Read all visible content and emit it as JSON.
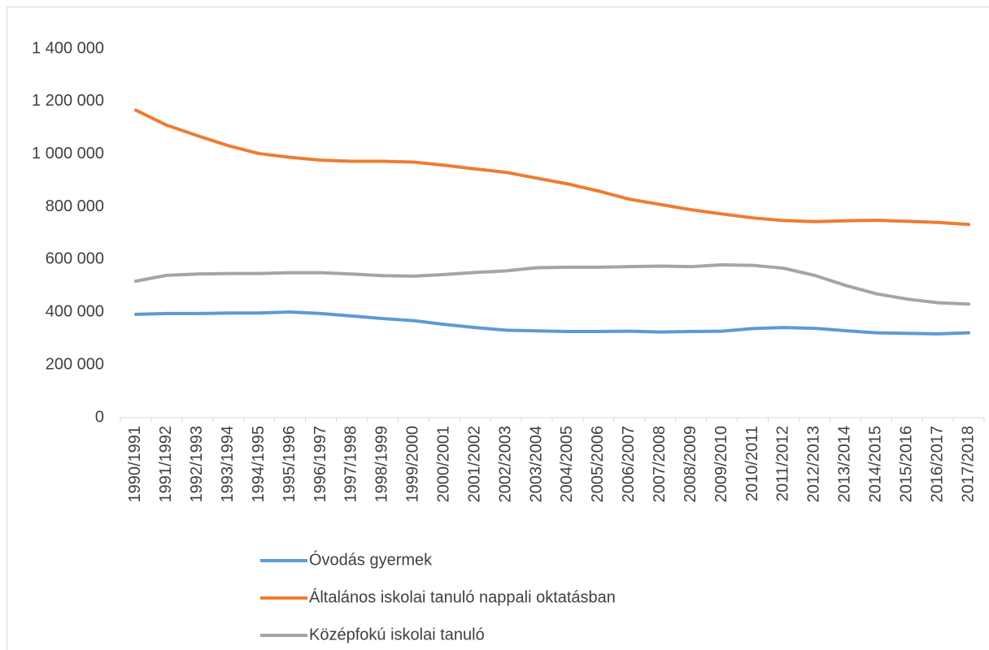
{
  "chart_data": {
    "type": "line",
    "categories": [
      "1990/1991",
      "1991/1992",
      "1992/1993",
      "1993/1994",
      "1994/1995",
      "1995/1996",
      "1996/1997",
      "1997/1998",
      "1998/1999",
      "1999/2000",
      "2000/2001",
      "2001/2002",
      "2002/2003",
      "2003/2004",
      "2004/2005",
      "2005/2006",
      "2006/2007",
      "2007/2008",
      "2008/2009",
      "2009/2010",
      "2010/2011",
      "2011/2012",
      "2012/2013",
      "2013/2014",
      "2014/2015",
      "2015/2016",
      "2016/2017",
      "2017/2018"
    ],
    "series": [
      {
        "name": "Óvodás gyermek",
        "color": "#5b9bd5",
        "values": [
          392000,
          395000,
          395000,
          397000,
          397000,
          401000,
          395000,
          386000,
          376000,
          368000,
          354000,
          342000,
          332000,
          329000,
          327000,
          327000,
          328000,
          325000,
          327000,
          328000,
          338000,
          342000,
          339000,
          330000,
          322000,
          320000,
          318000,
          322000
        ]
      },
      {
        "name": "Általános iskolai tanuló nappali oktatásban",
        "color": "#ed7d31",
        "values": [
          1167000,
          1110000,
          1070000,
          1032000,
          1002000,
          988000,
          977000,
          973000,
          973000,
          970000,
          958000,
          944000,
          931000,
          909000,
          887000,
          860000,
          829000,
          809000,
          789000,
          773000,
          758000,
          748000,
          744000,
          747000,
          749000,
          745000,
          741000,
          733000
        ]
      },
      {
        "name": "Középfokú iskolai tanuló",
        "color": "#a5a5a5",
        "values": [
          518000,
          540000,
          545000,
          547000,
          547000,
          550000,
          550000,
          545000,
          539000,
          537000,
          543000,
          551000,
          557000,
          569000,
          571000,
          571000,
          573000,
          575000,
          573000,
          580000,
          578000,
          567000,
          540000,
          502000,
          470000,
          450000,
          436000,
          431000
        ]
      }
    ],
    "ylim": [
      0,
      1400000
    ],
    "yticks": [
      0,
      {
        "value": 200000,
        "label": "200 000"
      },
      {
        "value": 400000,
        "label": "400 000"
      },
      {
        "value": 600000,
        "label": "600 000"
      },
      {
        "value": 800000,
        "label": "800 000"
      },
      {
        "value": 1000000,
        "label": "1 000 000"
      },
      {
        "value": 1200000,
        "label": "1 200 000"
      },
      {
        "value": 1400000,
        "label": "1 400 000"
      }
    ],
    "grid": false,
    "legend": "bottom"
  }
}
